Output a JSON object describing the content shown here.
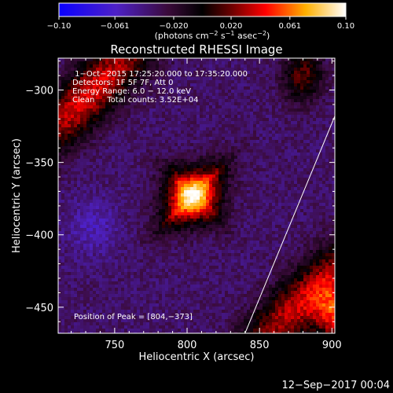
{
  "chart_data": {
    "type": "heatmap",
    "title": "Reconstructed RHESSI Image",
    "xlabel": "Heliocentric X (arcsec)",
    "ylabel": "Heliocentric Y (arcsec)",
    "xlim": [
      711,
      902
    ],
    "ylim": [
      -468,
      -278
    ],
    "x_ticks": [
      750,
      800,
      850,
      900
    ],
    "y_ticks": [
      -300,
      -350,
      -400,
      -450
    ],
    "x_tick_labels": [
      "750",
      "800",
      "850",
      "900"
    ],
    "y_tick_labels": [
      "−300",
      "−350",
      "−400",
      "−450"
    ],
    "colorbar": {
      "min": -0.1,
      "max": 0.1,
      "tick_values": [
        -0.1,
        -0.061,
        -0.02,
        0.02,
        0.061,
        0.1
      ],
      "tick_labels": [
        "−0.10",
        "−0.061",
        "−0.020",
        "0.020",
        "0.061",
        "0.10"
      ],
      "unit_label_parts": [
        "(photons cm",
        "−2",
        " s",
        "−1",
        " asec",
        "−2",
        ")"
      ]
    },
    "info_lines": [
      " 1−Oct−2015 17:25:20.000 to 17:35:20.000",
      "Detectors: 1F 5F 7F, Att 0",
      "Energy Range: 6.0 − 12.0 keV",
      "Clean     Total counts: 3.52E+04"
    ],
    "peak_label": "Position of Peak = [804,−373]",
    "peak": {
      "x": 804,
      "y": -373,
      "value": 0.1
    },
    "limb_line": [
      [
        840,
        -468
      ],
      [
        902,
        -318
      ]
    ],
    "footer_date": "12−Sep−2017 00:04",
    "grid": false
  }
}
